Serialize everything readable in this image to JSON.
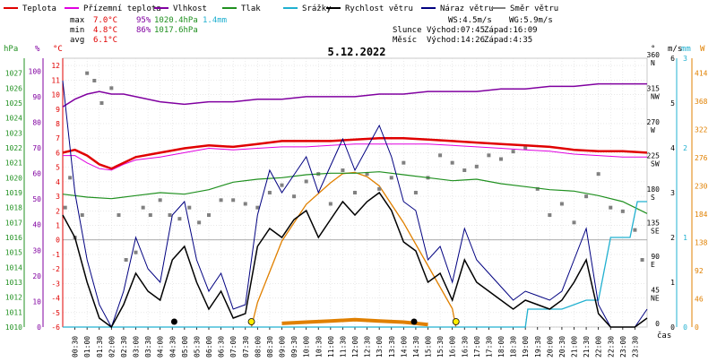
{
  "chart_data": {
    "type": "line",
    "title": "5.12.2022",
    "legend": {
      "placement": "top",
      "items": [
        {
          "label": "Teplota",
          "color": "#e00000"
        },
        {
          "label": "Přízemní teplota",
          "color": "#e000e0"
        },
        {
          "label": "Vlhkost",
          "color": "#8000a0"
        },
        {
          "label": "Tlak",
          "color": "#209020"
        },
        {
          "label": "Srážky",
          "color": "#20b0d0"
        },
        {
          "label": "Rychlost větru",
          "color": "#000000"
        },
        {
          "label": "Náraz větru",
          "color": "#000080"
        },
        {
          "label": "Směr větru",
          "color": "#808080"
        }
      ]
    },
    "stats": {
      "max_label": "max",
      "max_temp": "7.0°C",
      "max_hum": "95%",
      "max_press": "1020.4hPa",
      "max_rain": "1.4mm",
      "min_label": "min",
      "min_temp": "4.8°C",
      "min_hum": "86%",
      "min_press": "1017.6hPa",
      "avg_label": "avg",
      "avg_temp": "6.1°C"
    },
    "wind_stats": {
      "ws": "WS:4.5m/s",
      "wg": "WG:5.9m/s"
    },
    "sun_moon": {
      "sun_label": "Slunce",
      "sun_rise": "Východ:07:45",
      "sun_set": "Západ:16:09",
      "moon_label": "Měsíc",
      "moon_rise": "Východ:14:26",
      "moon_set": "Západ:4:35"
    },
    "axes": {
      "hpa": {
        "unit": "hPa",
        "range": [
          1010,
          1028
        ],
        "ticks": [
          1010,
          1011,
          1012,
          1013,
          1014,
          1015,
          1016,
          1017,
          1018,
          1019,
          1020,
          1021,
          1022,
          1023,
          1024,
          1025,
          1026,
          1027
        ],
        "color": "#209020"
      },
      "percent": {
        "unit": "%",
        "range": [
          0,
          105
        ],
        "ticks": [
          0,
          10,
          20,
          30,
          40,
          50,
          60,
          70,
          80,
          90,
          100
        ],
        "color": "#8000a0"
      },
      "celsius": {
        "unit": "°C",
        "range": [
          -6,
          12.5
        ],
        "ticks": [
          -6,
          -5,
          -4,
          -3,
          -2,
          -1,
          0,
          1,
          2,
          3,
          4,
          5,
          6,
          7,
          8,
          9,
          10,
          11,
          12
        ],
        "color": "#e00000"
      },
      "direction": {
        "unit": "°",
        "range": [
          0,
          360
        ],
        "ticks": [
          {
            "v": 0,
            "label": "0",
            "dir": ""
          },
          {
            "v": 45,
            "label": "45",
            "dir": "NE"
          },
          {
            "v": 90,
            "label": "90",
            "dir": "E"
          },
          {
            "v": 135,
            "label": "135",
            "dir": "SE"
          },
          {
            "v": 180,
            "label": "180",
            "dir": "S"
          },
          {
            "v": 225,
            "label": "225",
            "dir": "SW"
          },
          {
            "v": 270,
            "label": "270",
            "dir": "W"
          },
          {
            "v": 315,
            "label": "315",
            "dir": "NW"
          },
          {
            "v": 360,
            "label": "360",
            "dir": "N"
          }
        ]
      },
      "ms": {
        "unit": "m/s",
        "range": [
          0,
          6
        ],
        "ticks": [
          0,
          1,
          2,
          3,
          4,
          5,
          6
        ]
      },
      "mm": {
        "unit": "mm",
        "range": [
          0,
          3
        ],
        "ticks": [
          0,
          1,
          2,
          3
        ],
        "color": "#20b0d0"
      },
      "watts": {
        "unit": "W",
        "range": [
          0,
          438
        ],
        "ticks": [
          0,
          46,
          92,
          138,
          184,
          230,
          276,
          322,
          368,
          414
        ],
        "color": "#e08000"
      },
      "time": {
        "unit": "čas",
        "labels": [
          "00:30",
          "01:00",
          "01:30",
          "02:00",
          "02:30",
          "03:00",
          "03:30",
          "04:00",
          "04:30",
          "05:00",
          "05:30",
          "06:00",
          "06:30",
          "07:00",
          "07:30",
          "08:00",
          "08:30",
          "09:00",
          "09:30",
          "10:00",
          "10:30",
          "11:00",
          "11:30",
          "12:00",
          "12:30",
          "13:00",
          "13:30",
          "14:00",
          "14:30",
          "15:00",
          "15:30",
          "16:00",
          "16:30",
          "17:00",
          "17:30",
          "18:00",
          "18:30",
          "19:00",
          "19:30",
          "20:00",
          "20:30",
          "21:00",
          "21:30",
          "22:00",
          "22:30",
          "23:00",
          "23:30"
        ]
      }
    },
    "series": {
      "temperature": {
        "x": [
          0,
          0.5,
          1,
          1.5,
          2,
          2.5,
          3,
          4,
          5,
          6,
          7,
          8,
          9,
          10,
          11,
          12,
          13,
          14,
          15,
          16,
          17,
          18,
          19,
          20,
          21,
          22,
          23,
          24
        ],
        "y": [
          6.0,
          6.2,
          5.8,
          5.2,
          4.9,
          5.3,
          5.7,
          6.0,
          6.3,
          6.5,
          6.4,
          6.6,
          6.8,
          6.8,
          6.8,
          6.9,
          7.0,
          7.0,
          6.9,
          6.8,
          6.7,
          6.6,
          6.5,
          6.4,
          6.2,
          6.1,
          6.1,
          6.0
        ]
      },
      "ground_temperature": {
        "x": [
          0,
          0.5,
          1,
          1.5,
          2,
          2.5,
          3,
          4,
          5,
          6,
          7,
          8,
          9,
          10,
          11,
          12,
          13,
          14,
          15,
          16,
          17,
          18,
          19,
          20,
          21,
          22,
          23,
          24
        ],
        "y": [
          5.8,
          5.8,
          5.3,
          4.9,
          4.8,
          5.2,
          5.5,
          5.7,
          6.0,
          6.3,
          6.2,
          6.3,
          6.4,
          6.4,
          6.5,
          6.6,
          6.6,
          6.6,
          6.6,
          6.5,
          6.4,
          6.3,
          6.2,
          6.1,
          5.9,
          5.8,
          5.7,
          5.7
        ]
      },
      "humidity": {
        "x": [
          0,
          0.5,
          1,
          1.5,
          2,
          2.5,
          3,
          4,
          5,
          6,
          7,
          8,
          9,
          10,
          11,
          12,
          13,
          14,
          15,
          16,
          17,
          18,
          19,
          20,
          21,
          22,
          23,
          24
        ],
        "y": [
          86,
          89,
          91,
          92,
          91,
          91,
          90,
          88,
          87,
          88,
          88,
          89,
          89,
          90,
          90,
          90,
          91,
          91,
          92,
          92,
          92,
          93,
          93,
          94,
          94,
          95,
          95,
          95
        ]
      },
      "pressure": {
        "x": [
          0,
          1,
          2,
          3,
          4,
          5,
          6,
          7,
          8,
          9,
          10,
          11,
          12,
          13,
          14,
          15,
          16,
          17,
          18,
          19,
          20,
          21,
          22,
          23,
          24
        ],
        "y": [
          1018.9,
          1018.7,
          1018.6,
          1018.8,
          1019.0,
          1018.9,
          1019.2,
          1019.7,
          1019.9,
          1020.0,
          1020.2,
          1020.3,
          1020.3,
          1020.4,
          1020.2,
          1020.0,
          1019.8,
          1019.9,
          1019.6,
          1019.4,
          1019.2,
          1019.1,
          1018.8,
          1018.4,
          1017.6
        ]
      },
      "rain_total": {
        "x": [
          0,
          19,
          19.1,
          20.5,
          21.5,
          22,
          22.5,
          23.3,
          23.6,
          24
        ],
        "y": [
          0,
          0,
          0.2,
          0.2,
          0.3,
          0.3,
          1.0,
          1.0,
          1.4,
          1.4
        ]
      },
      "wind_speed": {
        "x": [
          0,
          0.5,
          1,
          1.5,
          2,
          2.5,
          3,
          3.5,
          4,
          4.5,
          5,
          5.5,
          6,
          6.5,
          7,
          7.5,
          8,
          8.5,
          9,
          9.5,
          10,
          10.5,
          11,
          11.5,
          12,
          12.5,
          13,
          13.5,
          14,
          14.5,
          15,
          15.5,
          16,
          16.5,
          17,
          17.5,
          18,
          18.5,
          19,
          19.5,
          20,
          20.5,
          21,
          21.5,
          22,
          22.5,
          23,
          23.5,
          24
        ],
        "y": [
          2.5,
          2.0,
          1.0,
          0.2,
          0,
          0.5,
          1.2,
          0.8,
          0.6,
          1.5,
          1.8,
          1.0,
          0.4,
          0.8,
          0.2,
          0.3,
          1.8,
          2.2,
          2.0,
          2.4,
          2.6,
          2.0,
          2.4,
          2.8,
          2.5,
          2.8,
          3.0,
          2.6,
          1.9,
          1.7,
          1.0,
          1.2,
          0.6,
          1.5,
          1.0,
          0.8,
          0.6,
          0.4,
          0.6,
          0.5,
          0.4,
          0.6,
          1.0,
          1.5,
          0.3,
          0,
          0,
          0,
          0.2
        ]
      },
      "wind_gust": {
        "x": [
          0,
          0.5,
          1,
          1.5,
          2,
          2.5,
          3,
          3.5,
          4,
          4.5,
          5,
          5.5,
          6,
          6.5,
          7,
          7.5,
          8,
          8.5,
          9,
          9.5,
          10,
          10.5,
          11,
          11.5,
          12,
          12.5,
          13,
          13.5,
          14,
          14.5,
          15,
          15.5,
          16,
          16.5,
          17,
          17.5,
          18,
          18.5,
          19,
          19.5,
          20,
          20.5,
          21,
          21.5,
          22,
          22.5,
          23,
          23.5,
          24
        ],
        "y": [
          5.5,
          3.0,
          1.5,
          0.5,
          0,
          0.8,
          2.0,
          1.3,
          1.0,
          2.5,
          2.8,
          1.5,
          0.8,
          1.2,
          0.4,
          0.5,
          2.5,
          3.5,
          3.0,
          3.4,
          3.8,
          3.0,
          3.6,
          4.2,
          3.5,
          4.0,
          4.5,
          3.8,
          2.8,
          2.6,
          1.5,
          1.8,
          1.0,
          2.2,
          1.5,
          1.2,
          0.9,
          0.6,
          0.8,
          0.7,
          0.6,
          0.8,
          1.5,
          2.2,
          0.5,
          0,
          0,
          0,
          0.4
        ]
      },
      "wind_direction": {
        "x": [
          0.1,
          0.3,
          0.5,
          0.8,
          1.0,
          1.3,
          1.6,
          2.0,
          2.3,
          2.6,
          3.0,
          3.3,
          3.6,
          4.0,
          4.4,
          4.8,
          5.2,
          5.6,
          6.0,
          6.5,
          7.0,
          7.5,
          8.0,
          8.5,
          9.0,
          9.5,
          10.0,
          10.5,
          11.0,
          11.5,
          12.0,
          12.5,
          13.0,
          13.5,
          14.0,
          14.5,
          15.0,
          15.5,
          16.0,
          16.5,
          17.0,
          17.5,
          18.0,
          18.5,
          19.0,
          19.5,
          20.0,
          20.5,
          21.0,
          21.5,
          22.0,
          22.5,
          23.0,
          23.5,
          23.8
        ],
        "y": [
          160,
          200,
          120,
          150,
          340,
          330,
          300,
          320,
          150,
          90,
          100,
          160,
          150,
          170,
          150,
          145,
          160,
          140,
          150,
          170,
          170,
          165,
          160,
          180,
          190,
          175,
          195,
          205,
          165,
          210,
          180,
          205,
          185,
          200,
          220,
          180,
          200,
          230,
          220,
          210,
          215,
          230,
          225,
          235,
          240,
          185,
          150,
          165,
          140,
          175,
          205,
          160,
          155,
          130,
          90
        ]
      },
      "solar_radiation": {
        "x": [
          7.75,
          8,
          9,
          10,
          11,
          11.5,
          12,
          12.5,
          13,
          14,
          15,
          16,
          16.15
        ],
        "y": [
          0,
          40,
          140,
          200,
          235,
          250,
          252,
          245,
          230,
          170,
          100,
          30,
          0
        ]
      },
      "solar_measured": {
        "x": [
          9,
          10,
          11,
          12,
          13,
          14,
          15
        ],
        "y": [
          6,
          8,
          10,
          12,
          10,
          8,
          4
        ]
      }
    },
    "markers": {
      "sunrise": {
        "x": 7.75,
        "color": "#ffee00"
      },
      "sunset": {
        "x": 16.15,
        "color": "#ffee00"
      },
      "moonrise": {
        "x": 14.43,
        "color": "#000000"
      },
      "moonset": {
        "x": 4.58,
        "color": "#000000"
      }
    }
  }
}
